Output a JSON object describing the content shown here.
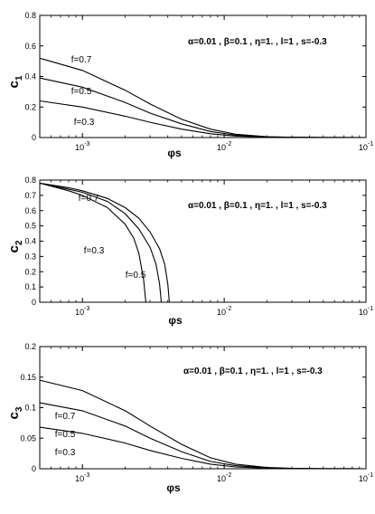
{
  "chart_data": [
    {
      "type": "line",
      "ylabel": "c",
      "ylabel_sub": "1",
      "xlabel": "φs",
      "xscale": "log",
      "xlim": [
        0.0005,
        0.1
      ],
      "ylim": [
        0,
        0.8
      ],
      "xticks": [
        0.001,
        0.01,
        0.1
      ],
      "xtick_labels": [
        {
          "base": "10",
          "exp": "-3"
        },
        {
          "base": "10",
          "exp": "-2"
        },
        {
          "base": "10",
          "exp": "-1"
        }
      ],
      "yticks": [
        0,
        0.2,
        0.4,
        0.6,
        0.8
      ],
      "ytick_labels": [
        "0",
        "0.2",
        "0.4",
        "0.6",
        "0.8"
      ],
      "annotation": "α=0.01 , β=0.1 , η=1. , l=1 , s=-0.3",
      "series": [
        {
          "name": "f=0.7",
          "x": [
            0.0005,
            0.001,
            0.002,
            0.003,
            0.005,
            0.008,
            0.012,
            0.02,
            0.03,
            0.05,
            0.1
          ],
          "y": [
            0.52,
            0.44,
            0.31,
            0.22,
            0.12,
            0.055,
            0.022,
            0.006,
            0.002,
            0.0005,
            0
          ]
        },
        {
          "name": "f=0.5",
          "x": [
            0.0005,
            0.001,
            0.002,
            0.003,
            0.005,
            0.008,
            0.012,
            0.02,
            0.03,
            0.05,
            0.1
          ],
          "y": [
            0.39,
            0.33,
            0.23,
            0.16,
            0.09,
            0.04,
            0.016,
            0.004,
            0.0015,
            0.0004,
            0
          ]
        },
        {
          "name": "f=0.3",
          "x": [
            0.0005,
            0.001,
            0.002,
            0.003,
            0.005,
            0.008,
            0.012,
            0.02,
            0.03,
            0.05,
            0.1
          ],
          "y": [
            0.24,
            0.2,
            0.14,
            0.1,
            0.055,
            0.025,
            0.01,
            0.003,
            0.001,
            0.0003,
            0
          ]
        }
      ]
    },
    {
      "type": "line",
      "ylabel": "c",
      "ylabel_sub": "2",
      "xlabel": "φs",
      "xscale": "log",
      "xlim": [
        0.0005,
        0.1
      ],
      "ylim": [
        0,
        0.8
      ],
      "xticks": [
        0.001,
        0.01,
        0.1
      ],
      "xtick_labels": [
        {
          "base": "10",
          "exp": "-3"
        },
        {
          "base": "10",
          "exp": "-2"
        },
        {
          "base": "10",
          "exp": "-1"
        }
      ],
      "yticks": [
        0,
        0.1,
        0.2,
        0.3,
        0.4,
        0.5,
        0.6,
        0.7,
        0.8
      ],
      "ytick_labels": [
        "0",
        "0.1",
        "0.2",
        "0.3",
        "0.4",
        "0.5",
        "0.6",
        "0.7",
        "0.8"
      ],
      "annotation": "α=0.01 , β=0.1 , η=1. , l=1 , s=-0.3",
      "series": [
        {
          "name": "f=0.7",
          "x": [
            0.0005,
            0.0008,
            0.001,
            0.0015,
            0.002,
            0.0025,
            0.003,
            0.0035,
            0.0038,
            0.004,
            0.0041
          ],
          "y": [
            0.78,
            0.75,
            0.73,
            0.68,
            0.62,
            0.55,
            0.46,
            0.35,
            0.25,
            0.12,
            0
          ]
        },
        {
          "name": "f=0.5",
          "x": [
            0.0005,
            0.0008,
            0.001,
            0.0015,
            0.002,
            0.0025,
            0.003,
            0.0033,
            0.0035,
            0.0036
          ],
          "y": [
            0.78,
            0.74,
            0.72,
            0.66,
            0.58,
            0.48,
            0.36,
            0.25,
            0.12,
            0
          ]
        },
        {
          "name": "f=0.3",
          "x": [
            0.0005,
            0.0008,
            0.001,
            0.0015,
            0.002,
            0.0023,
            0.0025,
            0.0027,
            0.0028
          ],
          "y": [
            0.78,
            0.73,
            0.7,
            0.62,
            0.51,
            0.42,
            0.32,
            0.15,
            0
          ]
        }
      ]
    },
    {
      "type": "line",
      "ylabel": "c",
      "ylabel_sub": "3",
      "xlabel": "φs",
      "xscale": "log",
      "xlim": [
        0.0005,
        0.1
      ],
      "ylim": [
        0,
        0.2
      ],
      "xticks": [
        0.001,
        0.01,
        0.1
      ],
      "xtick_labels": [
        {
          "base": "10",
          "exp": "-3"
        },
        {
          "base": "10",
          "exp": "-2"
        },
        {
          "base": "10",
          "exp": "-1"
        }
      ],
      "yticks": [
        0,
        0.05,
        0.1,
        0.15,
        0.2
      ],
      "ytick_labels": [
        "0",
        "0.05",
        "0.1",
        "0.15",
        "0.2"
      ],
      "annotation": "α=0.01 , β=0.1 , η=1. , l=1 , s=-0.3",
      "series": [
        {
          "name": "f=0.7",
          "x": [
            0.0005,
            0.001,
            0.002,
            0.003,
            0.005,
            0.008,
            0.012,
            0.02,
            0.03,
            0.05,
            0.1
          ],
          "y": [
            0.145,
            0.128,
            0.095,
            0.07,
            0.04,
            0.018,
            0.0075,
            0.002,
            0.0006,
            0.0001,
            0
          ]
        },
        {
          "name": "f=0.5",
          "x": [
            0.0005,
            0.001,
            0.002,
            0.003,
            0.005,
            0.008,
            0.012,
            0.02,
            0.03,
            0.05,
            0.1
          ],
          "y": [
            0.108,
            0.095,
            0.07,
            0.05,
            0.028,
            0.012,
            0.005,
            0.0015,
            0.0004,
            0.0001,
            0
          ]
        },
        {
          "name": "f=0.3",
          "x": [
            0.0005,
            0.001,
            0.002,
            0.003,
            0.005,
            0.008,
            0.012,
            0.02,
            0.03,
            0.05,
            0.1
          ],
          "y": [
            0.068,
            0.058,
            0.042,
            0.03,
            0.017,
            0.0075,
            0.003,
            0.001,
            0.0003,
            0.0001,
            0
          ]
        }
      ]
    }
  ]
}
